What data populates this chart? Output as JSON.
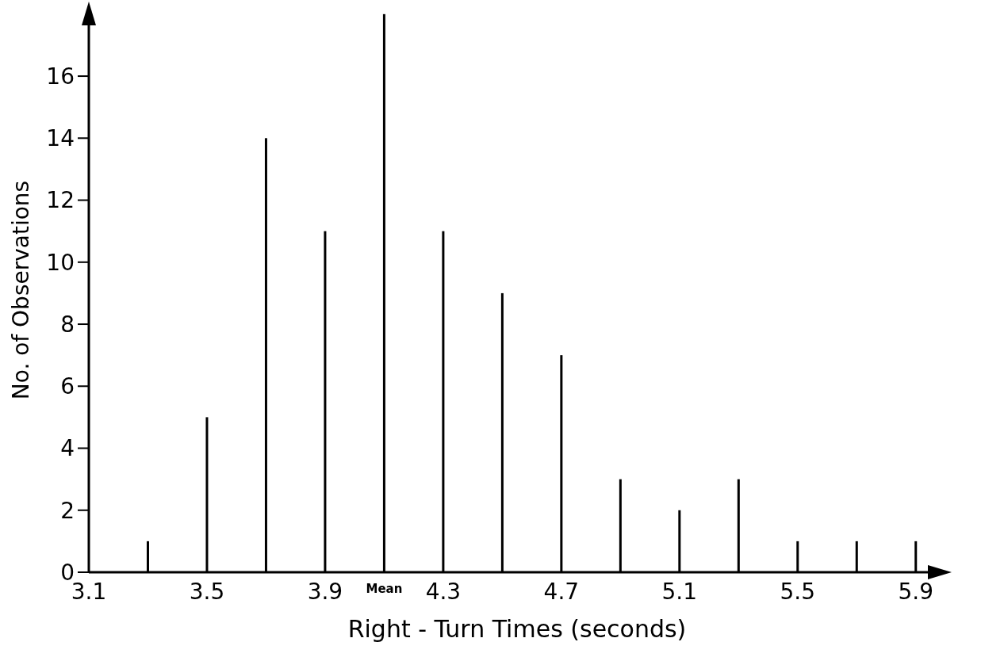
{
  "chart_data": {
    "type": "bar",
    "xlabel": "Right - Turn Times (seconds)",
    "ylabel": "No. of Observations",
    "x": [
      3.3,
      3.5,
      3.7,
      3.9,
      4.1,
      4.3,
      4.5,
      4.7,
      4.9,
      5.1,
      5.3,
      5.5,
      5.7,
      5.9
    ],
    "values": [
      1,
      5,
      14,
      11,
      18,
      11,
      9,
      7,
      3,
      2,
      3,
      1,
      1,
      1
    ],
    "color": "#000000",
    "xlim": [
      3.1,
      6.0
    ],
    "xticks": [
      3.1,
      3.5,
      3.9,
      4.3,
      4.7,
      5.1,
      5.5,
      5.9
    ],
    "ylim": [
      0,
      18.2
    ],
    "yticks": [
      0,
      2,
      4,
      6,
      8,
      10,
      12,
      14,
      16
    ],
    "annotations": [
      {
        "text": "Mean",
        "x": 4.1,
        "y": 0
      }
    ],
    "grid": false
  }
}
